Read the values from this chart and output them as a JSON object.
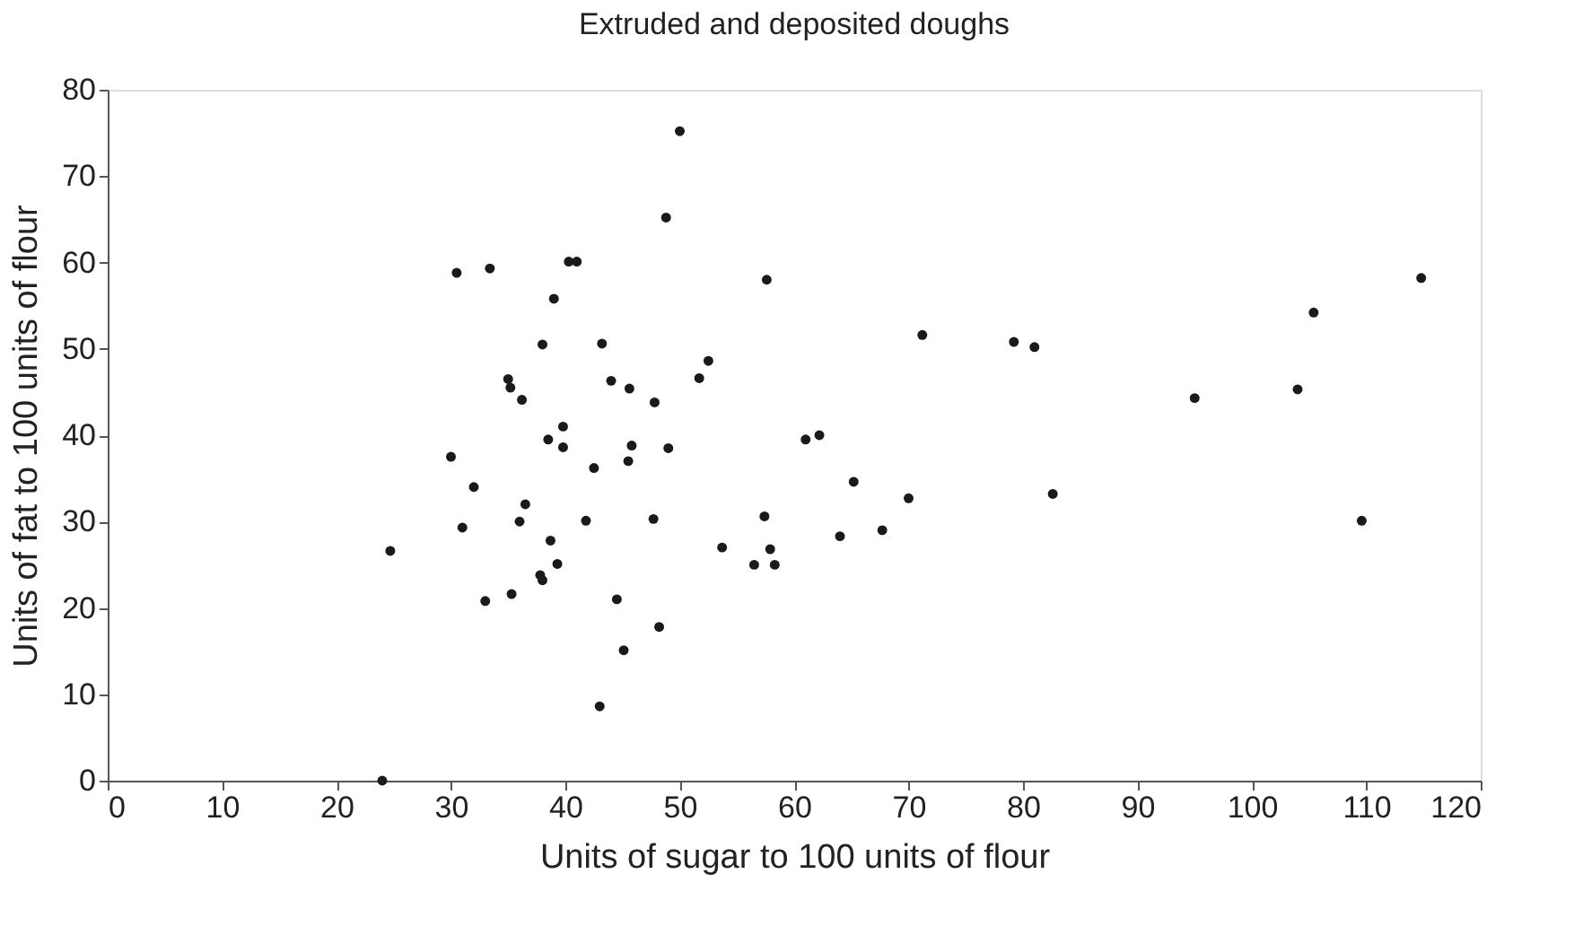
{
  "chart_data": {
    "type": "scatter",
    "title": "Extruded and deposited doughs",
    "xlabel": "Units of sugar to 100 units of flour",
    "ylabel": "Units of fat to 100 units of flour",
    "x": [
      24,
      24.7,
      30,
      30.5,
      31,
      32,
      33,
      33.4,
      35,
      35.2,
      35.3,
      36,
      36.2,
      36.5,
      37.8,
      38,
      38,
      38.5,
      38.7,
      39,
      39.3,
      39.8,
      39.8,
      40.3,
      41,
      41.8,
      42.5,
      43,
      43.2,
      44,
      44.5,
      45.1,
      45.5,
      45.6,
      45.8,
      47.7,
      47.8,
      48.2,
      48.8,
      49,
      50,
      51.7,
      52.5,
      53.7,
      56.5,
      57.4,
      57.6,
      57.9,
      58.3,
      61,
      62.2,
      64,
      65.2,
      67.7,
      70,
      71.2,
      79.2,
      81,
      82.6,
      95,
      104,
      105.4,
      109.6,
      114.8
    ],
    "values": [
      0,
      26.6,
      37.5,
      58.8,
      29.3,
      34,
      20.8,
      59.3,
      46.5,
      45.5,
      21.6,
      30,
      44.1,
      32,
      23.8,
      23.2,
      50.5,
      39.5,
      27.8,
      55.8,
      25.1,
      41,
      38.6,
      60.1,
      60.1,
      30.1,
      36.2,
      8.6,
      50.6,
      46.3,
      21,
      15.1,
      37,
      45.4,
      38.8,
      30.3,
      43.8,
      17.8,
      65.2,
      38.5,
      75.2,
      46.6,
      48.6,
      27,
      25,
      30.6,
      58,
      26.8,
      25,
      39.5,
      40,
      28.3,
      34.6,
      29,
      32.7,
      51.6,
      50.8,
      50.2,
      33.2,
      44.3,
      45.3,
      54.2,
      30.1,
      58.2
    ],
    "color": "#1a1a1a",
    "marker": "circle",
    "xlim": [
      0,
      120
    ],
    "xticks": [
      0,
      10,
      20,
      30,
      40,
      50,
      60,
      70,
      80,
      90,
      100,
      110,
      120
    ],
    "ylim": [
      0,
      80
    ],
    "yticks": [
      0,
      10,
      20,
      30,
      40,
      50,
      60,
      70,
      80
    ],
    "grid": false
  }
}
